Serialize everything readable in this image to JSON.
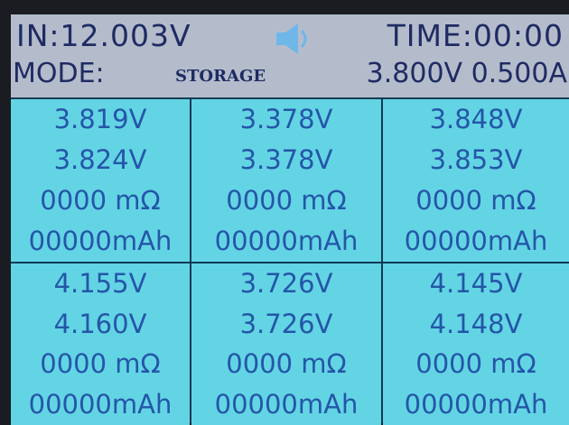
{
  "header": {
    "input": "IN:12.003V",
    "time": "TIME:00:00",
    "mode_label": "MODE:",
    "mode": "STORAGE",
    "setting": "3.800V 0.500A"
  },
  "cells": [
    [
      "3.819V",
      "3.824V",
      "0000 mΩ",
      "00000mAh"
    ],
    [
      "3.378V",
      "3.378V",
      "0000 mΩ",
      "00000mAh"
    ],
    [
      "3.848V",
      "3.853V",
      "0000 mΩ",
      "00000mAh"
    ],
    [
      "4.155V",
      "4.160V",
      "0000 mΩ",
      "00000mAh"
    ],
    [
      "3.726V",
      "3.726V",
      "0000 mΩ",
      "00000mAh"
    ],
    [
      "4.145V",
      "4.148V",
      "0000 mΩ",
      "00000mAh"
    ]
  ]
}
